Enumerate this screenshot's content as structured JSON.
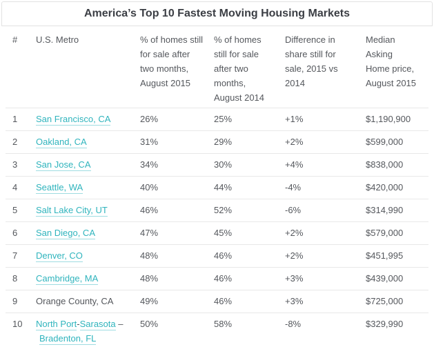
{
  "title": "America’s Top 10 Fastest Moving Housing Markets",
  "colors": {
    "link": "#2fb4bd",
    "link_underline": "#9edce1",
    "body_text": "#54575c",
    "title_text": "#3b3e44",
    "title_border": "#e2e2e2",
    "row_divider": "#e8e8e8",
    "background": "#ffffff"
  },
  "table": {
    "headers": [
      {
        "id": "rank",
        "label": "#"
      },
      {
        "id": "metro",
        "label": "U.S. Metro"
      },
      {
        "id": "pct_2015",
        "label": "% of homes still\nfor sale after\ntwo months,\nAugust 2015"
      },
      {
        "id": "pct_2014",
        "label": "% of homes\nstill for sale\nafter two\nmonths,\nAugust 2014"
      },
      {
        "id": "diff",
        "label": "Difference in\nshare still for\nsale, 2015 vs\n2014"
      },
      {
        "id": "price",
        "label": "Median\nAsking\nHome price,\nAugust 2015"
      }
    ],
    "rows": [
      {
        "rank": "1",
        "metro": [
          {
            "text": "San Francisco, CA",
            "link": true
          }
        ],
        "pct_2015": "26%",
        "pct_2014": "25%",
        "diff": "+1%",
        "price": "$1,190,900"
      },
      {
        "rank": "2",
        "metro": [
          {
            "text": "Oakland, CA",
            "link": true
          }
        ],
        "pct_2015": "31%",
        "pct_2014": "29%",
        "diff": "+2%",
        "price": "$599,000"
      },
      {
        "rank": "3",
        "metro": [
          {
            "text": "San Jose, CA",
            "link": true
          }
        ],
        "pct_2015": "34%",
        "pct_2014": "30%",
        "diff": "+4%",
        "price": "$838,000"
      },
      {
        "rank": "4",
        "metro": [
          {
            "text": "Seattle, WA",
            "link": true
          }
        ],
        "pct_2015": "40%",
        "pct_2014": "44%",
        "diff": "-4%",
        "price": "$420,000"
      },
      {
        "rank": "5",
        "metro": [
          {
            "text": "Salt Lake City, UT",
            "link": true
          }
        ],
        "pct_2015": "46%",
        "pct_2014": "52%",
        "diff": "-6%",
        "price": "$314,990"
      },
      {
        "rank": "6",
        "metro": [
          {
            "text": "San Diego, CA",
            "link": true
          }
        ],
        "pct_2015": "47%",
        "pct_2014": "45%",
        "diff": "+2%",
        "price": "$579,000"
      },
      {
        "rank": "7",
        "metro": [
          {
            "text": "Denver, CO",
            "link": true
          }
        ],
        "pct_2015": "48%",
        "pct_2014": "46%",
        "diff": "+2%",
        "price": "$451,995"
      },
      {
        "rank": "8",
        "metro": [
          {
            "text": "Cambridge, MA",
            "link": true
          }
        ],
        "pct_2015": "48%",
        "pct_2014": "46%",
        "diff": "+3%",
        "price": "$439,000"
      },
      {
        "rank": "9",
        "metro": [
          {
            "text": "Orange County, CA",
            "link": false
          }
        ],
        "pct_2015": "49%",
        "pct_2014": "46%",
        "diff": "+3%",
        "price": "$725,000"
      },
      {
        "rank": "10",
        "metro": [
          {
            "text": "North Port",
            "link": true
          },
          {
            "text": "-",
            "link": false
          },
          {
            "text": "Sarasota",
            "link": true
          },
          {
            "text": " –",
            "link": false
          },
          {
            "br": true
          },
          {
            "text": "Bradenton, FL",
            "link": true
          }
        ],
        "pct_2015": "50%",
        "pct_2014": "58%",
        "diff": "-8%",
        "price": "$329,990"
      }
    ]
  },
  "chart_data": {
    "type": "table",
    "title": "America’s Top 10 Fastest Moving Housing Markets",
    "columns": [
      "#",
      "U.S. Metro",
      "% of homes still for sale after two months, August 2015",
      "% of homes still for sale after two months, August 2014",
      "Difference in share still for sale, 2015 vs 2014",
      "Median Asking Home price, August 2015"
    ],
    "rows": [
      [
        "1",
        "San Francisco, CA",
        "26%",
        "25%",
        "+1%",
        "$1,190,900"
      ],
      [
        "2",
        "Oakland, CA",
        "31%",
        "29%",
        "+2%",
        "$599,000"
      ],
      [
        "3",
        "San Jose, CA",
        "34%",
        "30%",
        "+4%",
        "$838,000"
      ],
      [
        "4",
        "Seattle, WA",
        "40%",
        "44%",
        "-4%",
        "$420,000"
      ],
      [
        "5",
        "Salt Lake City, UT",
        "46%",
        "52%",
        "-6%",
        "$314,990"
      ],
      [
        "6",
        "San Diego, CA",
        "47%",
        "45%",
        "+2%",
        "$579,000"
      ],
      [
        "7",
        "Denver, CO",
        "48%",
        "46%",
        "+2%",
        "$451,995"
      ],
      [
        "8",
        "Cambridge, MA",
        "48%",
        "46%",
        "+3%",
        "$439,000"
      ],
      [
        "9",
        "Orange County, CA",
        "49%",
        "46%",
        "+3%",
        "$725,000"
      ],
      [
        "10",
        "North Port-Sarasota – Bradenton, FL",
        "50%",
        "58%",
        "-8%",
        "$329,990"
      ]
    ]
  }
}
